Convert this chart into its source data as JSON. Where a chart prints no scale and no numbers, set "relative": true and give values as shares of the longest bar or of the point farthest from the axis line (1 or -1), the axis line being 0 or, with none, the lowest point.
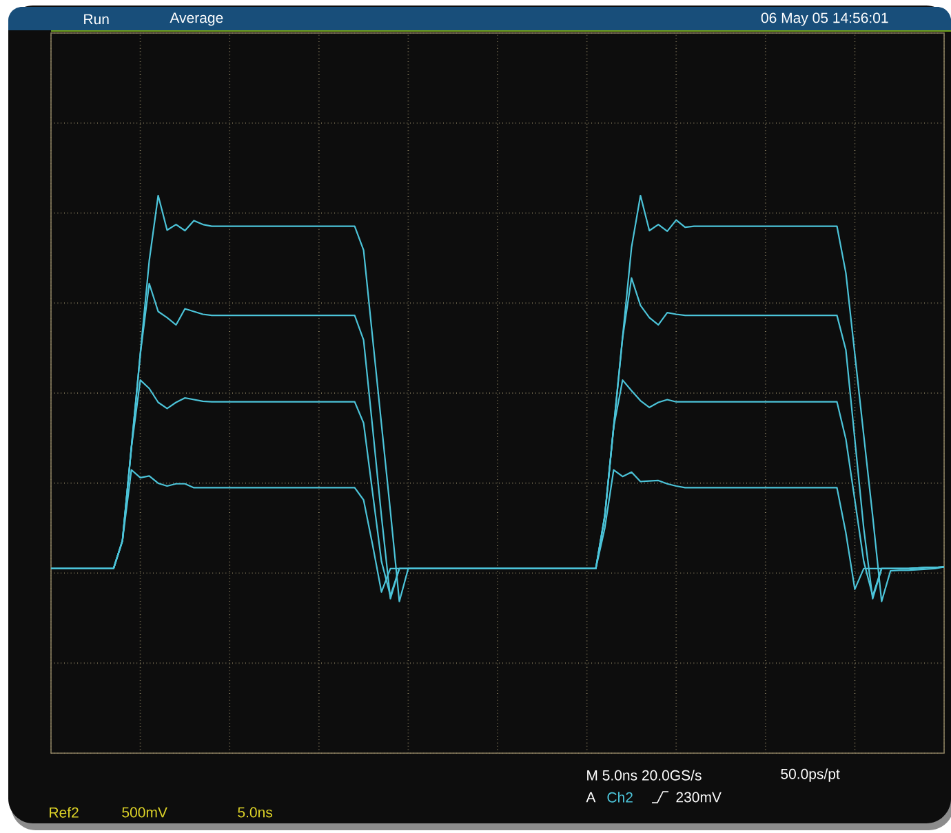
{
  "chart_data": {
    "type": "line",
    "relative": true,
    "grid": true,
    "marker": "none",
    "line_style": "solid",
    "categories": [
      null,
      null,
      null,
      null,
      null,
      null,
      null,
      null,
      null,
      null,
      null,
      null,
      null,
      null,
      null,
      null,
      null,
      null,
      null,
      null,
      null,
      null,
      null,
      null,
      null,
      null,
      null,
      null,
      null,
      null,
      null,
      null,
      null,
      null,
      null,
      null,
      null,
      null,
      null,
      null,
      null,
      null,
      null,
      null,
      null,
      null,
      null,
      null,
      null,
      null,
      null,
      null,
      null,
      null,
      null,
      null,
      null,
      null,
      null,
      null,
      null,
      null,
      null,
      null,
      null,
      null,
      null,
      null,
      null,
      null,
      null,
      null,
      null,
      null,
      null,
      null,
      null,
      null,
      null,
      null,
      null,
      null,
      null,
      null,
      null,
      null,
      null,
      null,
      null,
      null,
      null,
      null,
      null,
      null,
      null,
      null,
      null,
      null,
      null,
      null,
      null
    ],
    "annotations": [
      "Run",
      "Average",
      "06 May 05 14:56:01",
      "M 5.0ns 20.0GS/s",
      "50.0ps/pt",
      "A",
      "Ch2",
      "230mV",
      "Ref2",
      "500mV",
      "5.0ns"
    ],
    "series": [
      {
        "color": "#4cc4d9",
        "values": [
          0.331,
          0.331,
          0.331,
          0.331,
          0.331,
          0.331,
          0.331,
          0.331,
          0.381,
          0.548,
          0.716,
          0.883,
          1.0,
          0.938,
          0.948,
          0.937,
          0.955,
          0.948,
          0.945,
          0.945,
          0.945,
          0.945,
          0.945,
          0.945,
          0.945,
          0.945,
          0.945,
          0.945,
          0.945,
          0.945,
          0.945,
          0.945,
          0.945,
          0.945,
          0.945,
          0.902,
          0.746,
          0.59,
          0.434,
          0.272,
          0.331,
          0.331,
          0.331,
          0.331,
          0.331,
          0.331,
          0.331,
          0.331,
          0.331,
          0.331,
          0.331,
          0.331,
          0.331,
          0.331,
          0.331,
          0.331,
          0.331,
          0.331,
          0.331,
          0.331,
          0.331,
          0.331,
          0.424,
          0.585,
          0.746,
          0.907,
          1.0,
          0.937,
          0.948,
          0.936,
          0.956,
          0.943,
          0.945,
          0.945,
          0.945,
          0.945,
          0.945,
          0.945,
          0.945,
          0.945,
          0.945,
          0.945,
          0.945,
          0.945,
          0.945,
          0.945,
          0.945,
          0.945,
          0.945,
          0.861,
          0.716,
          0.57,
          0.425,
          0.272,
          0.327,
          0.328,
          0.328,
          0.329,
          0.33,
          0.331,
          0.334
        ]
      },
      {
        "color": "#4cc4d9",
        "values": [
          0.331,
          0.331,
          0.331,
          0.331,
          0.331,
          0.331,
          0.331,
          0.331,
          0.381,
          0.548,
          0.716,
          0.842,
          0.792,
          0.781,
          0.768,
          0.797,
          0.792,
          0.787,
          0.785,
          0.785,
          0.785,
          0.785,
          0.785,
          0.785,
          0.785,
          0.785,
          0.785,
          0.785,
          0.785,
          0.785,
          0.785,
          0.785,
          0.785,
          0.785,
          0.785,
          0.741,
          0.585,
          0.425,
          0.277,
          0.331,
          0.331,
          0.331,
          0.331,
          0.331,
          0.331,
          0.331,
          0.331,
          0.331,
          0.331,
          0.331,
          0.331,
          0.331,
          0.331,
          0.331,
          0.331,
          0.331,
          0.331,
          0.331,
          0.331,
          0.331,
          0.331,
          0.331,
          0.425,
          0.585,
          0.745,
          0.852,
          0.803,
          0.781,
          0.768,
          0.79,
          0.787,
          0.785,
          0.785,
          0.785,
          0.785,
          0.785,
          0.785,
          0.785,
          0.785,
          0.785,
          0.785,
          0.785,
          0.785,
          0.785,
          0.785,
          0.785,
          0.785,
          0.785,
          0.785,
          0.723,
          0.563,
          0.403,
          0.277,
          0.331,
          0.331,
          0.331,
          0.331,
          0.332,
          0.333,
          0.333,
          0.334
        ]
      },
      {
        "color": "#4cc4d9",
        "values": [
          0.331,
          0.331,
          0.331,
          0.331,
          0.331,
          0.331,
          0.331,
          0.331,
          0.381,
          0.548,
          0.669,
          0.654,
          0.629,
          0.618,
          0.629,
          0.637,
          0.634,
          0.631,
          0.63,
          0.63,
          0.63,
          0.63,
          0.63,
          0.63,
          0.63,
          0.63,
          0.63,
          0.63,
          0.63,
          0.63,
          0.63,
          0.63,
          0.63,
          0.63,
          0.63,
          0.592,
          0.468,
          0.344,
          0.282,
          0.331,
          0.331,
          0.331,
          0.331,
          0.331,
          0.331,
          0.331,
          0.331,
          0.331,
          0.331,
          0.331,
          0.331,
          0.331,
          0.331,
          0.331,
          0.331,
          0.331,
          0.331,
          0.331,
          0.331,
          0.331,
          0.331,
          0.331,
          0.425,
          0.585,
          0.669,
          0.65,
          0.632,
          0.62,
          0.629,
          0.634,
          0.63,
          0.63,
          0.63,
          0.63,
          0.63,
          0.63,
          0.63,
          0.63,
          0.63,
          0.63,
          0.63,
          0.63,
          0.63,
          0.63,
          0.63,
          0.63,
          0.63,
          0.63,
          0.63,
          0.563,
          0.454,
          0.344,
          0.282,
          0.331,
          0.331,
          0.331,
          0.331,
          0.332,
          0.333,
          0.333,
          0.334
        ]
      },
      {
        "color": "#4cc4d9",
        "values": [
          0.331,
          0.331,
          0.331,
          0.331,
          0.331,
          0.331,
          0.331,
          0.331,
          0.381,
          0.508,
          0.494,
          0.497,
          0.484,
          0.479,
          0.483,
          0.483,
          0.476,
          0.476,
          0.476,
          0.476,
          0.476,
          0.476,
          0.476,
          0.476,
          0.476,
          0.476,
          0.476,
          0.476,
          0.476,
          0.476,
          0.476,
          0.476,
          0.476,
          0.476,
          0.476,
          0.454,
          0.374,
          0.289,
          0.331,
          0.331,
          0.331,
          0.331,
          0.331,
          0.331,
          0.331,
          0.331,
          0.331,
          0.331,
          0.331,
          0.331,
          0.331,
          0.331,
          0.331,
          0.331,
          0.331,
          0.331,
          0.331,
          0.331,
          0.331,
          0.331,
          0.331,
          0.331,
          0.403,
          0.508,
          0.496,
          0.504,
          0.487,
          0.488,
          0.489,
          0.483,
          0.479,
          0.476,
          0.476,
          0.476,
          0.476,
          0.476,
          0.476,
          0.476,
          0.476,
          0.476,
          0.476,
          0.476,
          0.476,
          0.476,
          0.476,
          0.476,
          0.476,
          0.476,
          0.476,
          0.395,
          0.294,
          0.331,
          0.331,
          0.331,
          0.331,
          0.331,
          0.331,
          0.332,
          0.333,
          0.333,
          0.334
        ]
      }
    ]
  }
}
